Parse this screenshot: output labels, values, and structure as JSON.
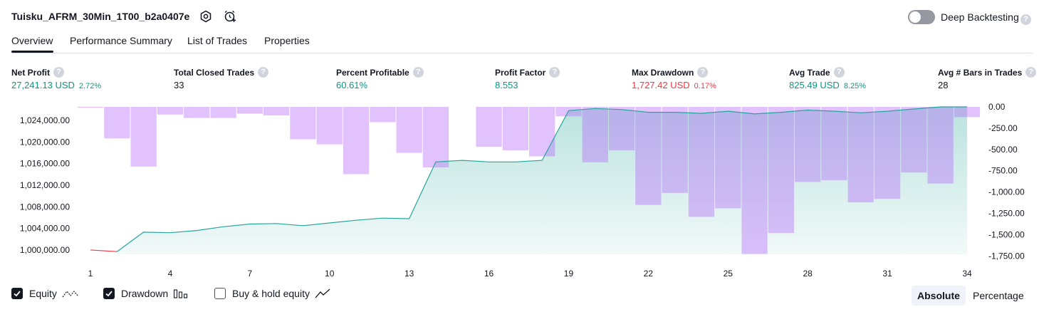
{
  "header": {
    "strategy_title": "Tuisku_AFRM_30Min_1T00_b2a0407e",
    "deep_backtesting_label": "Deep Backtesting",
    "deep_backtesting_on": false,
    "help_glyph": "?"
  },
  "tabs": [
    {
      "label": "Overview",
      "active": true
    },
    {
      "label": "Performance Summary",
      "active": false
    },
    {
      "label": "List of Trades",
      "active": false
    },
    {
      "label": "Properties",
      "active": false
    }
  ],
  "stats": [
    {
      "label": "Net Profit",
      "value": "27,241.13 USD",
      "pct": "2.72%",
      "color": "#089981"
    },
    {
      "label": "Total Closed Trades",
      "value": "33",
      "pct": "",
      "color": "#131722"
    },
    {
      "label": "Percent Profitable",
      "value": "60.61%",
      "pct": "",
      "color": "#089981"
    },
    {
      "label": "Profit Factor",
      "value": "8.553",
      "pct": "",
      "color": "#089981"
    },
    {
      "label": "Max Drawdown",
      "value": "1,727.42 USD",
      "pct": "0.17%",
      "color": "#f23645"
    },
    {
      "label": "Avg Trade",
      "value": "825.49 USD",
      "pct": "8.25%",
      "color": "#089981"
    },
    {
      "label": "Avg # Bars in Trades",
      "value": "28",
      "pct": "",
      "color": "#131722"
    }
  ],
  "legend": {
    "equity_label": "Equity",
    "drawdown_label": "Drawdown",
    "buy_hold_label": "Buy & hold equity",
    "equity_checked": true,
    "drawdown_checked": true,
    "buy_hold_checked": false
  },
  "buttons": {
    "absolute_label": "Absolute",
    "percentage_label": "Percentage",
    "selected": "absolute"
  },
  "colors": {
    "equity_line": "#26a69a",
    "equity_fill": "#26a69a",
    "equity_negative_line": "#f23645",
    "drawdown_fill": "#b566fb",
    "axis_text": "#131722"
  },
  "chart_data": {
    "type": "area",
    "x": [
      1,
      2,
      3,
      4,
      5,
      6,
      7,
      8,
      9,
      10,
      11,
      12,
      13,
      14,
      15,
      16,
      17,
      18,
      19,
      20,
      21,
      22,
      23,
      24,
      25,
      26,
      27,
      28,
      29,
      30,
      31,
      32,
      33,
      34
    ],
    "x_tick_labels": [
      "1",
      "4",
      "7",
      "10",
      "13",
      "16",
      "19",
      "22",
      "25",
      "28",
      "31",
      "34"
    ],
    "left_axis_ticks": [
      "1,000,000.00",
      "1,004,000.00",
      "1,008,000.00",
      "1,012,000.00",
      "1,016,000.00",
      "1,020,000.00",
      "1,024,000.00"
    ],
    "left_axis_range": [
      999200,
      1026500
    ],
    "right_axis_ticks": [
      "0.00",
      "-250.00",
      "-500.00",
      "-750.00",
      "-1,000.00",
      "-1,250.00",
      "-1,500.00",
      "-1,750.00"
    ],
    "right_axis_range": [
      -1730,
      0
    ],
    "series": [
      {
        "name": "Equity",
        "kind": "area",
        "values": [
          1000000,
          999700,
          1003300,
          1003200,
          1003600,
          1004300,
          1004800,
          1004900,
          1004500,
          1005000,
          1005500,
          1005900,
          1005800,
          1016300,
          1016600,
          1016300,
          1016300,
          1016600,
          1025800,
          1026200,
          1026000,
          1025500,
          1025500,
          1025300,
          1025700,
          1025200,
          1025500,
          1025900,
          1025700,
          1025400,
          1025700,
          1026100,
          1027000,
          1027241
        ]
      },
      {
        "name": "Drawdown",
        "kind": "bar",
        "values": [
          -10,
          -370,
          -700,
          -90,
          -130,
          -130,
          -80,
          -100,
          -380,
          -440,
          -790,
          -180,
          -540,
          -710,
          0,
          -470,
          -510,
          -580,
          -110,
          -650,
          -510,
          -1150,
          -1010,
          -1290,
          -1190,
          -1727,
          -1480,
          -880,
          -860,
          -1120,
          -1080,
          -770,
          -900,
          -120
        ]
      }
    ]
  }
}
